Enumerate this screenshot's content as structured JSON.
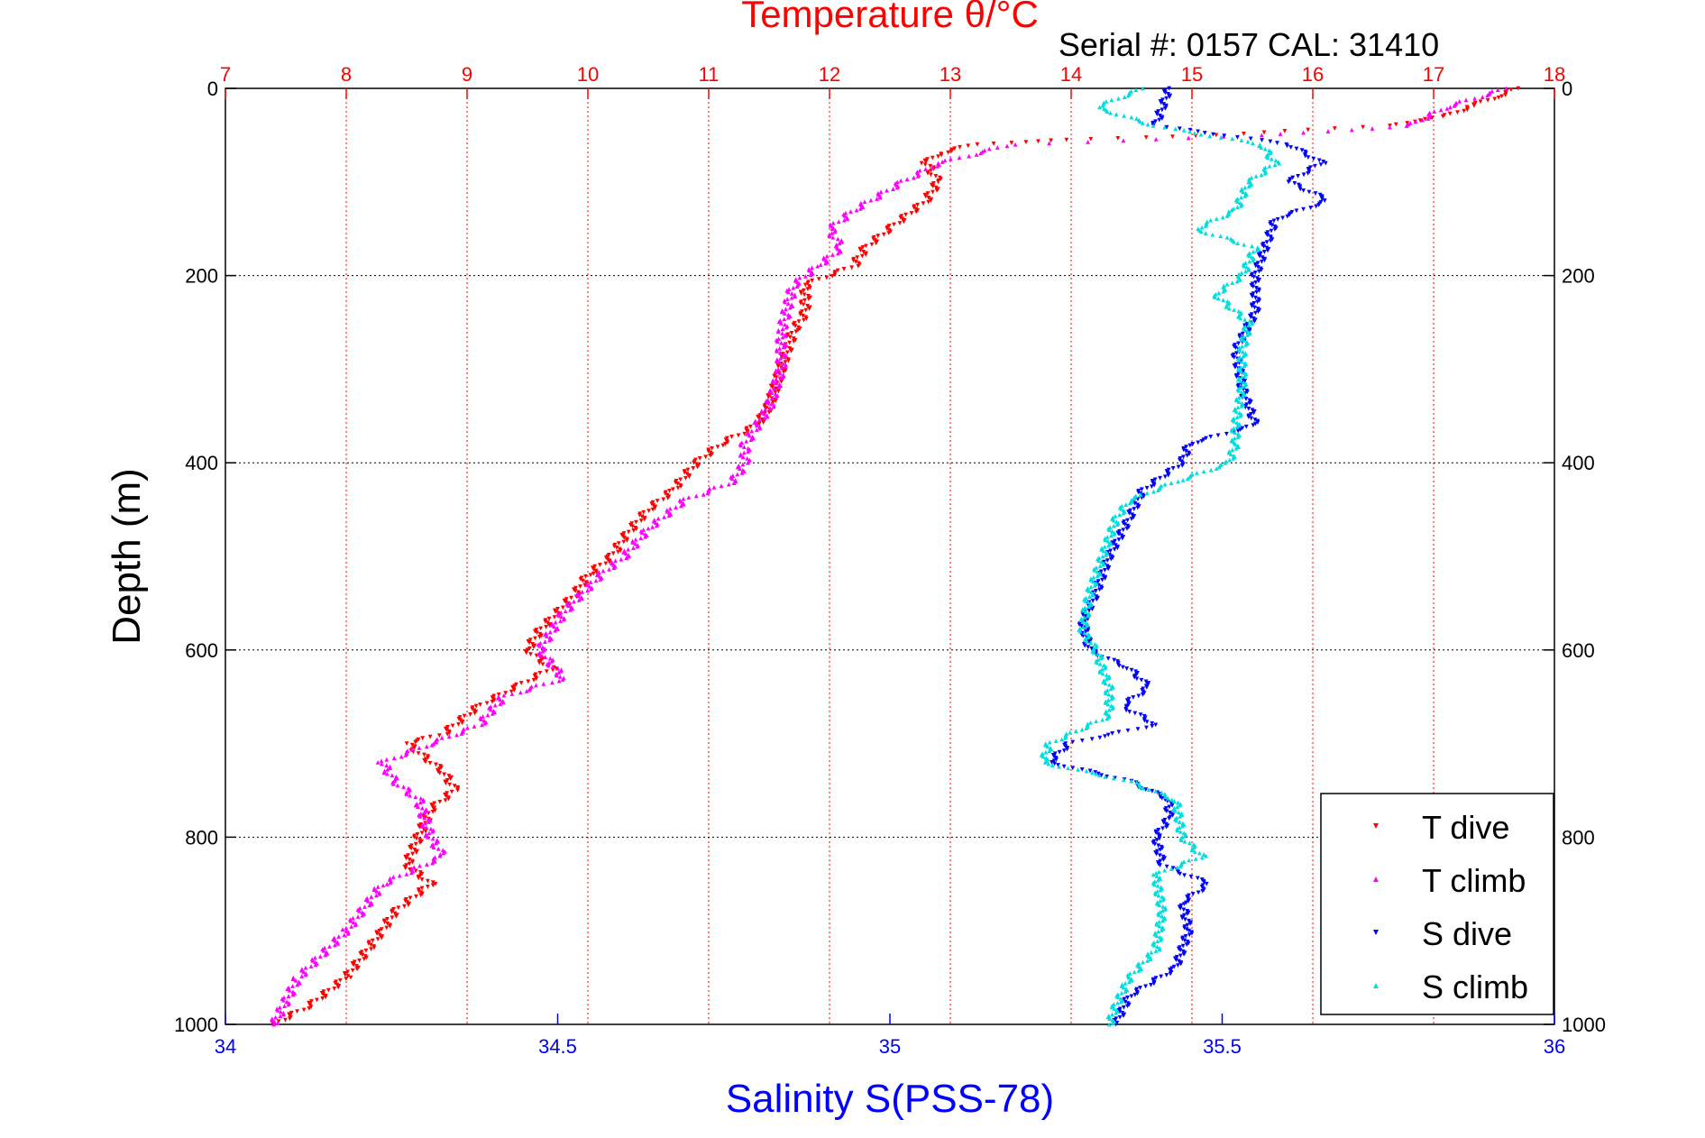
{
  "chart_data": {
    "type": "scatter",
    "title": "Temperature θ/°C",
    "subtitle": "Serial #: 0157  CAL: 31410",
    "ylabel": "Depth (m)",
    "xlabel": "Salinity S(PSS-78)",
    "temperature_axis": {
      "range": [
        7,
        18
      ],
      "ticks": [
        "7",
        "8",
        "9",
        "10",
        "11",
        "12",
        "13",
        "14",
        "15",
        "16",
        "17",
        "18"
      ],
      "color": "#ff0000"
    },
    "salinity_axis": {
      "range": [
        34,
        36
      ],
      "ticks": [
        "34",
        "34.5",
        "35",
        "35.5",
        "36"
      ],
      "color": "#0000ff"
    },
    "depth_axis": {
      "range": [
        0,
        1000
      ],
      "inverted": true,
      "ticks": [
        "0",
        "200",
        "400",
        "600",
        "800",
        "1000"
      ]
    },
    "grid": true,
    "legend": {
      "placement": "bottom-right",
      "entries": [
        "T dive",
        "T climb",
        "S dive",
        "S climb"
      ]
    },
    "series": [
      {
        "name": "T dive",
        "variable": "temperature",
        "color": "#ff0000",
        "marker": "down-triangle",
        "points": [
          [
            0,
            17.7
          ],
          [
            10,
            17.5
          ],
          [
            20,
            17.3
          ],
          [
            30,
            17.1
          ],
          [
            40,
            16.6
          ],
          [
            50,
            15.2
          ],
          [
            55,
            14.0
          ],
          [
            60,
            13.2
          ],
          [
            70,
            12.9
          ],
          [
            80,
            12.8
          ],
          [
            100,
            12.9
          ],
          [
            120,
            12.8
          ],
          [
            150,
            12.5
          ],
          [
            170,
            12.3
          ],
          [
            190,
            12.2
          ],
          [
            210,
            11.8
          ],
          [
            240,
            11.8
          ],
          [
            260,
            11.7
          ],
          [
            300,
            11.6
          ],
          [
            340,
            11.5
          ],
          [
            360,
            11.4
          ],
          [
            380,
            11.1
          ],
          [
            400,
            10.9
          ],
          [
            430,
            10.7
          ],
          [
            450,
            10.5
          ],
          [
            480,
            10.3
          ],
          [
            500,
            10.2
          ],
          [
            520,
            10.0
          ],
          [
            540,
            9.9
          ],
          [
            580,
            9.6
          ],
          [
            600,
            9.5
          ],
          [
            620,
            9.7
          ],
          [
            640,
            9.4
          ],
          [
            660,
            9.1
          ],
          [
            690,
            8.8
          ],
          [
            700,
            8.5
          ],
          [
            730,
            8.8
          ],
          [
            750,
            8.9
          ],
          [
            770,
            8.7
          ],
          [
            800,
            8.6
          ],
          [
            830,
            8.5
          ],
          [
            850,
            8.7
          ],
          [
            880,
            8.4
          ],
          [
            900,
            8.3
          ],
          [
            950,
            8.0
          ],
          [
            980,
            7.7
          ],
          [
            1000,
            7.4
          ]
        ]
      },
      {
        "name": "T climb",
        "variable": "temperature",
        "color": "#ff00ff",
        "marker": "up-triangle",
        "points": [
          [
            0,
            17.6
          ],
          [
            20,
            17.1
          ],
          [
            40,
            16.8
          ],
          [
            50,
            15.6
          ],
          [
            60,
            13.5
          ],
          [
            80,
            12.9
          ],
          [
            100,
            12.6
          ],
          [
            130,
            12.2
          ],
          [
            150,
            12.0
          ],
          [
            170,
            12.1
          ],
          [
            190,
            11.9
          ],
          [
            210,
            11.7
          ],
          [
            260,
            11.6
          ],
          [
            300,
            11.6
          ],
          [
            340,
            11.5
          ],
          [
            360,
            11.4
          ],
          [
            380,
            11.3
          ],
          [
            400,
            11.3
          ],
          [
            420,
            11.2
          ],
          [
            440,
            10.8
          ],
          [
            470,
            10.5
          ],
          [
            500,
            10.3
          ],
          [
            520,
            10.1
          ],
          [
            560,
            9.8
          ],
          [
            600,
            9.6
          ],
          [
            630,
            9.8
          ],
          [
            650,
            9.3
          ],
          [
            680,
            9.1
          ],
          [
            700,
            8.7
          ],
          [
            720,
            8.3
          ],
          [
            740,
            8.4
          ],
          [
            760,
            8.6
          ],
          [
            800,
            8.7
          ],
          [
            820,
            8.8
          ],
          [
            850,
            8.3
          ],
          [
            900,
            8.0
          ],
          [
            950,
            7.6
          ],
          [
            1000,
            7.4
          ]
        ]
      },
      {
        "name": "S dive",
        "variable": "salinity",
        "color": "#0000ff",
        "marker": "down-triangle",
        "points": [
          [
            0,
            35.42
          ],
          [
            20,
            35.41
          ],
          [
            40,
            35.4
          ],
          [
            60,
            35.6
          ],
          [
            80,
            35.65
          ],
          [
            100,
            35.6
          ],
          [
            120,
            35.66
          ],
          [
            140,
            35.58
          ],
          [
            160,
            35.57
          ],
          [
            200,
            35.55
          ],
          [
            240,
            35.55
          ],
          [
            280,
            35.52
          ],
          [
            320,
            35.53
          ],
          [
            360,
            35.55
          ],
          [
            380,
            35.45
          ],
          [
            400,
            35.44
          ],
          [
            430,
            35.38
          ],
          [
            460,
            35.36
          ],
          [
            500,
            35.33
          ],
          [
            540,
            35.31
          ],
          [
            570,
            35.29
          ],
          [
            600,
            35.3
          ],
          [
            620,
            35.36
          ],
          [
            640,
            35.39
          ],
          [
            660,
            35.35
          ],
          [
            680,
            35.4
          ],
          [
            700,
            35.27
          ],
          [
            720,
            35.24
          ],
          [
            740,
            35.36
          ],
          [
            760,
            35.42
          ],
          [
            780,
            35.42
          ],
          [
            800,
            35.4
          ],
          [
            830,
            35.41
          ],
          [
            850,
            35.48
          ],
          [
            870,
            35.44
          ],
          [
            900,
            35.45
          ],
          [
            940,
            35.43
          ],
          [
            970,
            35.36
          ],
          [
            1000,
            35.34
          ]
        ]
      },
      {
        "name": "S climb",
        "variable": "salinity",
        "color": "#00dddd",
        "marker": "up-triangle",
        "points": [
          [
            0,
            35.38
          ],
          [
            20,
            35.31
          ],
          [
            40,
            35.4
          ],
          [
            60,
            35.56
          ],
          [
            80,
            35.58
          ],
          [
            100,
            35.54
          ],
          [
            130,
            35.52
          ],
          [
            150,
            35.46
          ],
          [
            170,
            35.55
          ],
          [
            200,
            35.53
          ],
          [
            220,
            35.49
          ],
          [
            250,
            35.54
          ],
          [
            280,
            35.53
          ],
          [
            320,
            35.53
          ],
          [
            360,
            35.52
          ],
          [
            380,
            35.52
          ],
          [
            400,
            35.51
          ],
          [
            420,
            35.43
          ],
          [
            440,
            35.36
          ],
          [
            460,
            35.34
          ],
          [
            500,
            35.32
          ],
          [
            540,
            35.3
          ],
          [
            580,
            35.29
          ],
          [
            600,
            35.31
          ],
          [
            640,
            35.33
          ],
          [
            670,
            35.33
          ],
          [
            700,
            35.24
          ],
          [
            720,
            35.23
          ],
          [
            740,
            35.36
          ],
          [
            760,
            35.43
          ],
          [
            800,
            35.44
          ],
          [
            820,
            35.47
          ],
          [
            840,
            35.4
          ],
          [
            880,
            35.41
          ],
          [
            920,
            35.4
          ],
          [
            950,
            35.36
          ],
          [
            980,
            35.34
          ],
          [
            1000,
            35.33
          ]
        ]
      }
    ]
  }
}
